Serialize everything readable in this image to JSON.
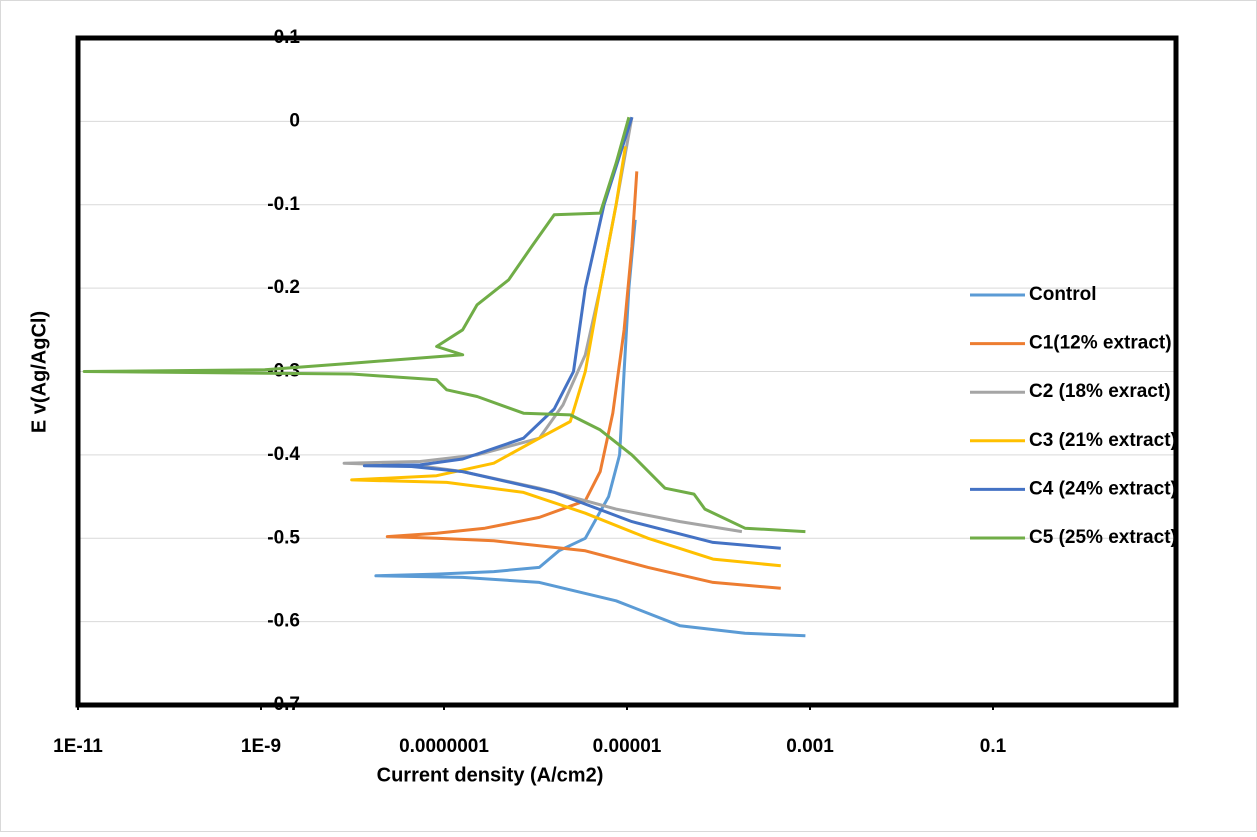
{
  "chart_data": {
    "type": "line",
    "xlabel": "Current density (A/cm2)",
    "ylabel": "E v(Ag/AgCl)",
    "xscale": "log",
    "xlim": [
      1e-11,
      10
    ],
    "ylim": [
      -0.7,
      0.1
    ],
    "xticks": [
      {
        "value": 1e-11,
        "label": "1E-11"
      },
      {
        "value": 1e-09,
        "label": "1E-9"
      },
      {
        "value": 1e-07,
        "label": "0.0000001"
      },
      1e-05,
      0.001,
      0.1
    ],
    "yticks": [
      0.1,
      0,
      -0.1,
      -0.2,
      -0.3,
      -0.4,
      -0.5,
      -0.6,
      -0.7
    ],
    "grid": true,
    "legend": "right",
    "series": [
      {
        "name": "Control",
        "color": "#5b9bd5",
        "x": [
          0.00089,
          0.000195,
          3.8e-05,
          7.6e-06,
          1.1e-06,
          1.6e-07,
          1.8e-08,
          8.3e-08,
          3.5e-07,
          1.1e-06,
          1.8e-06,
          3.5e-06,
          6.3e-06,
          8.3e-06,
          9.3e-06,
          1.05e-05,
          1.23e-05
        ],
        "values": [
          -0.617,
          -0.614,
          -0.605,
          -0.575,
          -0.553,
          -0.547,
          -0.545,
          -0.543,
          -0.54,
          -0.535,
          -0.515,
          -0.5,
          -0.45,
          -0.4,
          -0.3,
          -0.2,
          -0.118
        ]
      },
      {
        "name": "C1(12% extract)",
        "color": "#ed7d31",
        "x": [
          0.00048,
          8.7e-05,
          1.7e-05,
          3.5e-06,
          3.5e-07,
          8.3e-08,
          2.4e-08,
          8.3e-08,
          2.8e-07,
          1.1e-06,
          3.5e-06,
          5.1e-06,
          7e-06,
          9.3e-06,
          1.13e-05,
          1.28e-05
        ],
        "values": [
          -0.56,
          -0.553,
          -0.535,
          -0.515,
          -0.503,
          -0.5,
          -0.498,
          -0.494,
          -0.488,
          -0.475,
          -0.455,
          -0.42,
          -0.35,
          -0.25,
          -0.15,
          -0.06
        ]
      },
      {
        "name": "C2 (18% exract)",
        "color": "#a5a5a5",
        "x": [
          0.00018,
          3.8e-05,
          7.6e-06,
          1.1e-06,
          1.6e-07,
          5.5e-08,
          8.1e-09,
          5.5e-08,
          2.3e-07,
          1.1e-06,
          2e-06,
          3.5e-06,
          5.1e-06,
          7.6e-06,
          1.13e-05
        ],
        "values": [
          -0.492,
          -0.48,
          -0.465,
          -0.44,
          -0.42,
          -0.413,
          -0.41,
          -0.408,
          -0.4,
          -0.38,
          -0.34,
          -0.28,
          -0.2,
          -0.1,
          0.005
        ]
      },
      {
        "name": "C3 (21% extract)",
        "color": "#ffc000",
        "x": [
          0.00048,
          8.7e-05,
          1.7e-05,
          3.5e-06,
          7.4e-07,
          1.07e-07,
          9.8e-09,
          8.3e-08,
          3.5e-07,
          1.1e-06,
          2.4e-06,
          3.5e-06,
          5.1e-06,
          7.6e-06,
          9.6e-06
        ],
        "values": [
          -0.533,
          -0.525,
          -0.5,
          -0.47,
          -0.445,
          -0.433,
          -0.43,
          -0.425,
          -0.41,
          -0.38,
          -0.36,
          -0.3,
          -0.2,
          -0.1,
          -0.03
        ]
      },
      {
        "name": "C4 (24% extract)",
        "color": "#4472c4",
        "x": [
          0.00048,
          8.7e-05,
          1.13e-05,
          1.6e-06,
          1.6e-07,
          4.4e-08,
          1.35e-08,
          5.5e-08,
          1.6e-07,
          7.4e-07,
          1.6e-06,
          2.6e-06,
          3.5e-06,
          5.6e-06,
          1.13e-05
        ],
        "values": [
          -0.512,
          -0.505,
          -0.48,
          -0.445,
          -0.42,
          -0.414,
          -0.413,
          -0.412,
          -0.405,
          -0.38,
          -0.345,
          -0.3,
          -0.2,
          -0.1,
          0.005
        ]
      },
      {
        "name": "C5 (25% extract)",
        "color": "#70ad47",
        "x": [
          0.00089,
          0.000195,
          7.1e-05,
          5.4e-05,
          2.6e-05,
          1.13e-05,
          5.1e-06,
          2.4e-06,
          7.4e-07,
          2.3e-07,
          1.07e-07,
          8.3e-08,
          9.8e-09,
          1.17e-11,
          1.1e-09,
          9.8e-09,
          1.6e-07,
          8.3e-08,
          1.6e-07,
          2.3e-07,
          5.1e-07,
          9.1e-07,
          1.6e-06,
          5.1e-06,
          7.6e-06,
          1.05e-05
        ],
        "values": [
          -0.492,
          -0.488,
          -0.465,
          -0.447,
          -0.44,
          -0.4,
          -0.37,
          -0.352,
          -0.35,
          -0.33,
          -0.322,
          -0.31,
          -0.303,
          -0.3,
          -0.298,
          -0.29,
          -0.28,
          -0.27,
          -0.25,
          -0.22,
          -0.19,
          -0.15,
          -0.112,
          -0.11,
          -0.05,
          0.005
        ]
      }
    ]
  }
}
